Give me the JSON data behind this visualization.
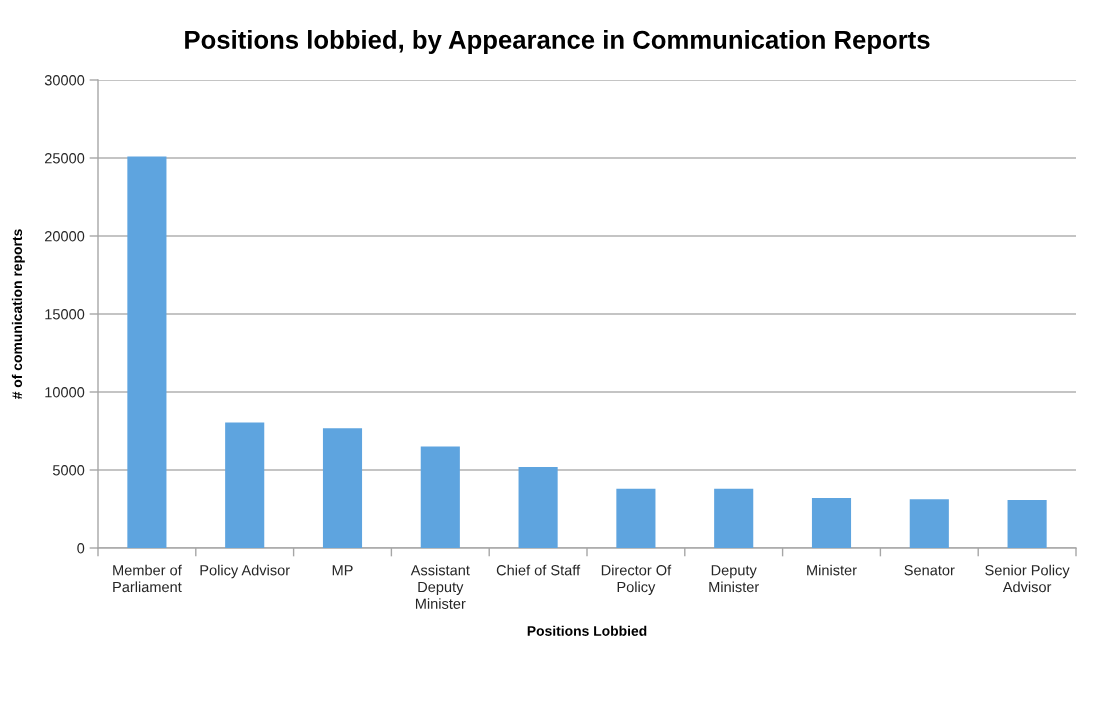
{
  "chart_data": {
    "type": "bar",
    "title": "Positions lobbied, by Appearance in Communication Reports",
    "xlabel": "Positions Lobbied",
    "ylabel": "# of comunication reports",
    "categories": [
      "Member of Parliament",
      "Policy Advisor",
      "MP",
      "Assistant Deputy Minister",
      "Chief of Staff",
      "Director Of Policy",
      "Deputy Minister",
      "Minister",
      "Senator",
      "Senior Policy Advisor"
    ],
    "values": [
      25100,
      8050,
      7680,
      6500,
      5200,
      3800,
      3800,
      3200,
      3130,
      3080
    ],
    "color": "#5ea4df",
    "ylim": [
      0,
      30000
    ],
    "yticks": [
      0,
      5000,
      10000,
      15000,
      20000,
      25000,
      30000
    ],
    "grid": "y"
  }
}
